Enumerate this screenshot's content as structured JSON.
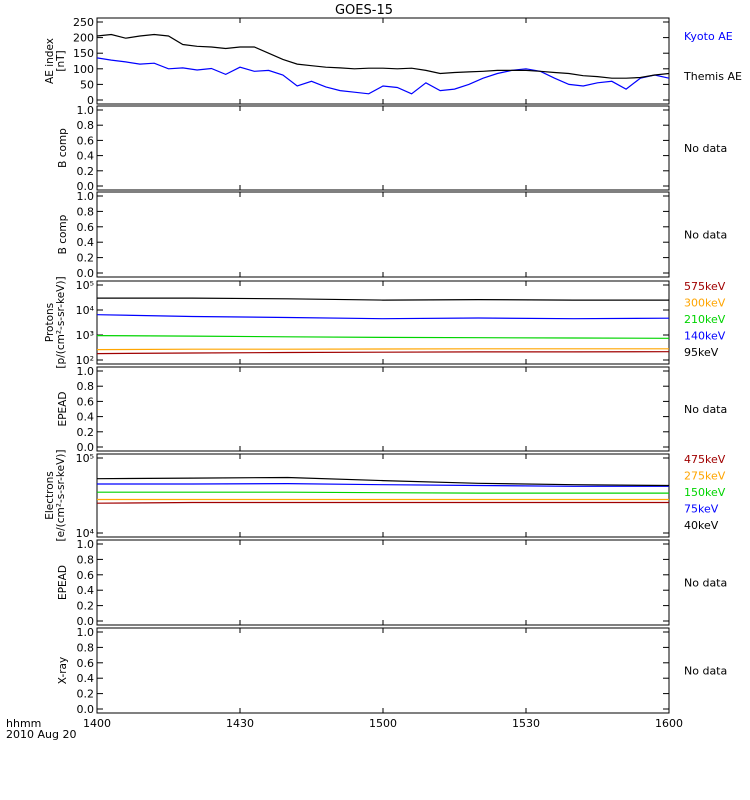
{
  "title": "GOES-15",
  "footer": {
    "time_label": "hhmm",
    "date_label": "2010 Aug 20"
  },
  "colors": {
    "black": "#000000",
    "blue": "#0000ff",
    "green": "#00d400",
    "orange": "#ffa500",
    "darkred": "#a00000",
    "frame": "#000000"
  },
  "x_axis": {
    "ticks": [
      "1400",
      "1430",
      "1500",
      "1530",
      "1600"
    ]
  },
  "chart_data": [
    {
      "type": "line",
      "id": "ae",
      "ylabel": [
        "AE index",
        "[nT]"
      ],
      "yticks": [
        "0",
        "50",
        "100",
        "150",
        "200",
        "250"
      ],
      "yrange": [
        0,
        250
      ],
      "x": [
        0,
        3,
        6,
        9,
        12,
        15,
        18,
        21,
        24,
        27,
        30,
        33,
        36,
        39,
        42,
        45,
        48,
        51,
        54,
        57,
        60,
        63,
        66,
        69,
        72,
        75,
        78,
        81,
        84,
        87,
        90,
        93,
        96,
        99,
        102,
        105,
        108,
        111,
        114,
        117,
        120
      ],
      "series": [
        {
          "name": "Kyoto AE",
          "color": "#0000ff",
          "values": [
            135,
            128,
            122,
            115,
            118,
            100,
            103,
            96,
            101,
            82,
            105,
            92,
            95,
            80,
            45,
            60,
            42,
            30,
            25,
            20,
            45,
            40,
            20,
            55,
            30,
            35,
            50,
            70,
            85,
            95,
            100,
            92,
            70,
            50,
            45,
            55,
            60,
            35,
            70,
            80,
            70
          ]
        },
        {
          "name": "Themis AE",
          "color": "#000000",
          "values": [
            205,
            210,
            198,
            205,
            210,
            205,
            178,
            172,
            170,
            165,
            170,
            170,
            150,
            130,
            115,
            110,
            105,
            103,
            100,
            102,
            102,
            100,
            102,
            95,
            85,
            88,
            90,
            92,
            95,
            95,
            95,
            92,
            88,
            85,
            78,
            75,
            70,
            70,
            72,
            80,
            85
          ]
        }
      ]
    },
    {
      "type": "line",
      "id": "b1",
      "ylabel": [
        "B comp"
      ],
      "yticks": [
        "0.0",
        "0.2",
        "0.4",
        "0.6",
        "0.8",
        "1.0"
      ],
      "series": [],
      "note": "No data"
    },
    {
      "type": "line",
      "id": "b2",
      "ylabel": [
        "B comp"
      ],
      "yticks": [
        "0.0",
        "0.2",
        "0.4",
        "0.6",
        "0.8",
        "1.0"
      ],
      "series": [],
      "note": "No data"
    },
    {
      "type": "line",
      "id": "protons",
      "log": true,
      "ylabel": [
        "Protons",
        "[p/(cm²-s-sr-keV)]"
      ],
      "yticks": [
        "10²",
        "10³",
        "10⁴",
        "10⁵"
      ],
      "yrange": [
        100,
        100000
      ],
      "x": [
        0,
        20,
        40,
        60,
        80,
        100,
        120
      ],
      "series": [
        {
          "name": "575keV",
          "color": "#a00000",
          "values": [
            180,
            190,
            200,
            205,
            210,
            210,
            215
          ]
        },
        {
          "name": "300keV",
          "color": "#ffa500",
          "values": [
            260,
            270,
            270,
            275,
            280,
            280,
            280
          ]
        },
        {
          "name": "210keV",
          "color": "#00d400",
          "values": [
            950,
            900,
            850,
            800,
            780,
            760,
            740
          ]
        },
        {
          "name": "140keV",
          "color": "#0000ff",
          "values": [
            6500,
            5500,
            5000,
            4500,
            4800,
            4500,
            4700
          ]
        },
        {
          "name": "95keV",
          "color": "#000000",
          "values": [
            30000,
            30000,
            28000,
            25000,
            26000,
            25000,
            25000
          ]
        }
      ]
    },
    {
      "type": "line",
      "id": "epead1",
      "ylabel": [
        "EPEAD"
      ],
      "yticks": [
        "0.0",
        "0.2",
        "0.4",
        "0.6",
        "0.8",
        "1.0"
      ],
      "series": [],
      "note": "No data"
    },
    {
      "type": "line",
      "id": "electrons",
      "log": true,
      "ylabel": [
        "Electrons",
        "[e/(cm²-s-sr-keV)]"
      ],
      "yticks": [
        "10⁴",
        "10⁵"
      ],
      "yrange": [
        10000,
        100000
      ],
      "x": [
        0,
        20,
        40,
        60,
        80,
        100,
        120
      ],
      "series": [
        {
          "name": "475keV",
          "color": "#a00000",
          "values": [
            25000,
            25500,
            25500,
            25500,
            25500,
            25500,
            25500
          ]
        },
        {
          "name": "275keV",
          "color": "#ffa500",
          "values": [
            28000,
            28000,
            28000,
            28000,
            28000,
            28000,
            28000
          ]
        },
        {
          "name": "150keV",
          "color": "#00d400",
          "values": [
            35000,
            35000,
            35000,
            34500,
            34000,
            34000,
            34000
          ]
        },
        {
          "name": "75keV",
          "color": "#0000ff",
          "values": [
            45000,
            45000,
            45500,
            44000,
            43000,
            42000,
            42000
          ]
        },
        {
          "name": "40keV",
          "color": "#000000",
          "values": [
            53000,
            54000,
            55000,
            50000,
            46000,
            44000,
            43000
          ]
        }
      ]
    },
    {
      "type": "line",
      "id": "epead2",
      "ylabel": [
        "EPEAD"
      ],
      "yticks": [
        "0.0",
        "0.2",
        "0.4",
        "0.6",
        "0.8",
        "1.0"
      ],
      "series": [],
      "note": "No data"
    },
    {
      "type": "line",
      "id": "xray",
      "ylabel": [
        "X-ray"
      ],
      "yticks": [
        "0.0",
        "0.2",
        "0.4",
        "0.6",
        "0.8",
        "1.0"
      ],
      "series": [],
      "note": "No data"
    }
  ]
}
